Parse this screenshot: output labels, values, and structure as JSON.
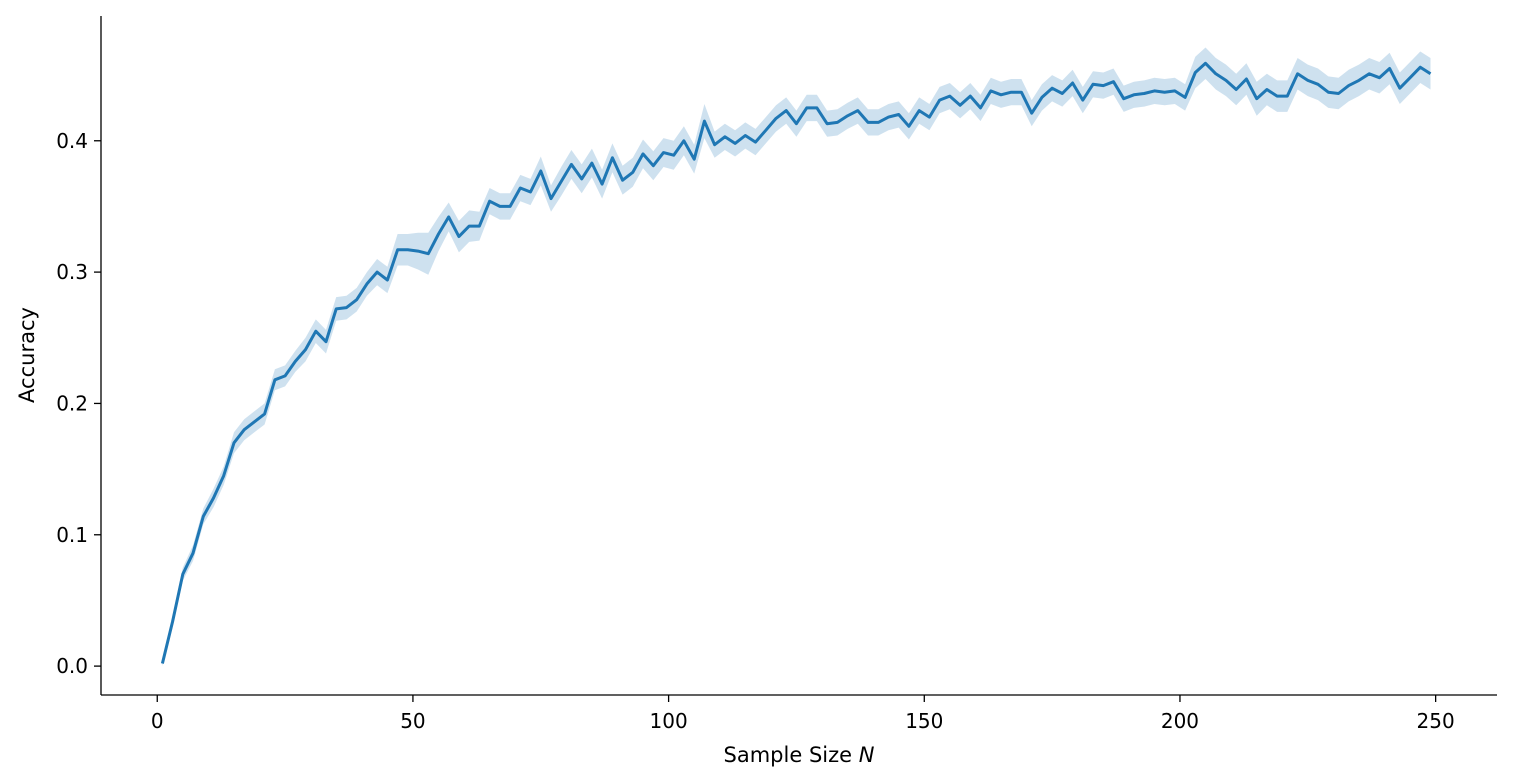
{
  "chart_data": {
    "type": "line",
    "xlabel": "Sample Size",
    "xlabel_var": "N",
    "ylabel": "Accuracy",
    "xlim": [
      -11,
      262
    ],
    "ylim": [
      -0.022,
      0.495
    ],
    "x_ticks": [
      0,
      50,
      100,
      150,
      200,
      250
    ],
    "x_tick_labels": [
      "0",
      "50",
      "100",
      "150",
      "200",
      "250"
    ],
    "y_ticks": [
      0.0,
      0.1,
      0.2,
      0.3,
      0.4
    ],
    "y_tick_labels": [
      "0.0",
      "0.1",
      "0.2",
      "0.3",
      "0.4"
    ],
    "grid": false,
    "colors": {
      "line": "#1f77b4",
      "band": "#1f77b4"
    },
    "series": [
      {
        "x": [
          1,
          3,
          5,
          7,
          9,
          11,
          13,
          15,
          17,
          19,
          21,
          23,
          25,
          27,
          29,
          31,
          33,
          35,
          37,
          39,
          41,
          43,
          45,
          47,
          49,
          51,
          53,
          55,
          57,
          59,
          61,
          63,
          65,
          67,
          69,
          71,
          73,
          75,
          77,
          79,
          81,
          83,
          85,
          87,
          89,
          91,
          93,
          95,
          97,
          99,
          101,
          103,
          105,
          107,
          109,
          111,
          113,
          115,
          117,
          119,
          121,
          123,
          125,
          127,
          129,
          131,
          133,
          135,
          137,
          139,
          141,
          143,
          145,
          147,
          149,
          151,
          153,
          155,
          157,
          159,
          161,
          163,
          165,
          167,
          169,
          171,
          173,
          175,
          177,
          179,
          181,
          183,
          185,
          187,
          189,
          191,
          193,
          195,
          197,
          199,
          201,
          203,
          205,
          207,
          209,
          211,
          213,
          215,
          217,
          219,
          221,
          223,
          225,
          227,
          229,
          231,
          233,
          235,
          237,
          239,
          241,
          243,
          245,
          247,
          249
        ],
        "values": [
          0.002,
          0.034,
          0.07,
          0.086,
          0.114,
          0.128,
          0.145,
          0.17,
          0.18,
          0.186,
          0.192,
          0.218,
          0.221,
          0.232,
          0.241,
          0.255,
          0.247,
          0.272,
          0.273,
          0.279,
          0.291,
          0.3,
          0.294,
          0.317,
          0.317,
          0.316,
          0.314,
          0.329,
          0.342,
          0.327,
          0.335,
          0.335,
          0.354,
          0.35,
          0.35,
          0.364,
          0.361,
          0.377,
          0.356,
          0.369,
          0.382,
          0.371,
          0.383,
          0.367,
          0.387,
          0.37,
          0.376,
          0.39,
          0.381,
          0.391,
          0.389,
          0.4,
          0.386,
          0.415,
          0.397,
          0.403,
          0.398,
          0.404,
          0.399,
          0.408,
          0.417,
          0.423,
          0.413,
          0.425,
          0.425,
          0.413,
          0.414,
          0.419,
          0.423,
          0.414,
          0.414,
          0.418,
          0.42,
          0.411,
          0.423,
          0.418,
          0.431,
          0.434,
          0.427,
          0.434,
          0.425,
          0.438,
          0.435,
          0.437,
          0.437,
          0.421,
          0.433,
          0.44,
          0.436,
          0.444,
          0.431,
          0.443,
          0.442,
          0.445,
          0.432,
          0.435,
          0.436,
          0.438,
          0.437,
          0.438,
          0.433,
          0.452,
          0.459,
          0.451,
          0.446,
          0.439,
          0.447,
          0.432,
          0.439,
          0.434,
          0.434,
          0.451,
          0.446,
          0.443,
          0.437,
          0.436,
          0.442,
          0.446,
          0.451,
          0.448,
          0.455,
          0.44,
          0.448,
          0.456,
          0.451
        ],
        "ci_halfwidth": [
          0.002,
          0.004,
          0.005,
          0.006,
          0.006,
          0.007,
          0.007,
          0.008,
          0.008,
          0.008,
          0.008,
          0.008,
          0.008,
          0.008,
          0.009,
          0.009,
          0.009,
          0.009,
          0.009,
          0.009,
          0.009,
          0.01,
          0.01,
          0.012,
          0.012,
          0.014,
          0.016,
          0.013,
          0.011,
          0.012,
          0.012,
          0.011,
          0.01,
          0.01,
          0.01,
          0.01,
          0.01,
          0.011,
          0.01,
          0.011,
          0.011,
          0.011,
          0.011,
          0.011,
          0.011,
          0.011,
          0.011,
          0.011,
          0.011,
          0.011,
          0.011,
          0.011,
          0.011,
          0.013,
          0.01,
          0.01,
          0.01,
          0.01,
          0.01,
          0.01,
          0.01,
          0.01,
          0.01,
          0.01,
          0.01,
          0.01,
          0.01,
          0.01,
          0.01,
          0.01,
          0.01,
          0.01,
          0.01,
          0.01,
          0.01,
          0.01,
          0.01,
          0.01,
          0.01,
          0.01,
          0.01,
          0.01,
          0.01,
          0.01,
          0.01,
          0.01,
          0.01,
          0.01,
          0.01,
          0.01,
          0.01,
          0.01,
          0.01,
          0.01,
          0.01,
          0.01,
          0.01,
          0.01,
          0.01,
          0.01,
          0.01,
          0.012,
          0.012,
          0.012,
          0.012,
          0.012,
          0.012,
          0.013,
          0.012,
          0.012,
          0.012,
          0.012,
          0.012,
          0.012,
          0.012,
          0.012,
          0.012,
          0.012,
          0.012,
          0.012,
          0.012,
          0.012,
          0.012,
          0.012,
          0.012
        ]
      }
    ]
  }
}
